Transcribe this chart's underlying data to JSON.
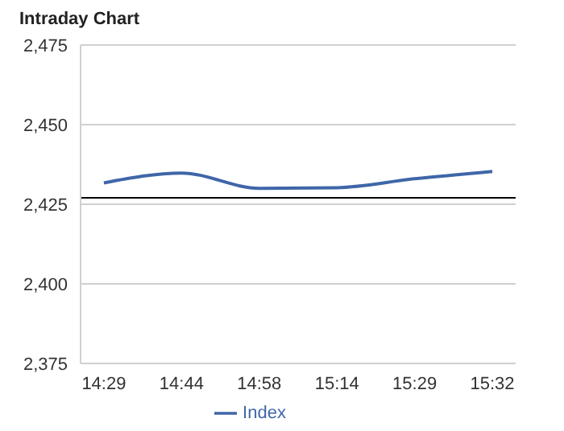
{
  "chart_data": {
    "type": "line",
    "title": "Intraday Chart",
    "categories": [
      "14:29",
      "14:44",
      "14:58",
      "15:14",
      "15:29",
      "15:32"
    ],
    "series": [
      {
        "name": "Index",
        "color": "#3f66a8",
        "values": [
          2431.7,
          2434.8,
          2430,
          2430.2,
          2433,
          2435.3
        ]
      }
    ],
    "ylim": [
      2375,
      2475
    ],
    "yticks": [
      {
        "value": 2375,
        "label": "2,375"
      },
      {
        "value": 2400,
        "label": "2,400"
      },
      {
        "value": 2425,
        "label": "2,425"
      },
      {
        "value": 2450,
        "label": "2,450"
      },
      {
        "value": 2475,
        "label": "2,475"
      }
    ],
    "ref_lines": [
      {
        "axis": "y",
        "value": 2427,
        "color": "#000000"
      }
    ],
    "grid": "y",
    "legend": "bottom",
    "marker": "none",
    "line_style": "solid"
  }
}
